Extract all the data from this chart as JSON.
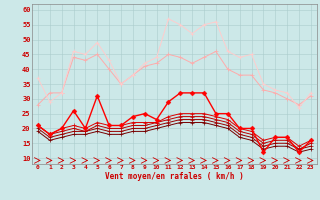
{
  "xlabel": "Vent moyen/en rafales ( km/h )",
  "background_color": "#cce8e8",
  "x": [
    0,
    1,
    2,
    3,
    4,
    5,
    6,
    7,
    8,
    9,
    10,
    11,
    12,
    13,
    14,
    15,
    16,
    17,
    18,
    19,
    20,
    21,
    22,
    23
  ],
  "ylim": [
    8,
    62
  ],
  "yticks": [
    10,
    15,
    20,
    25,
    30,
    35,
    40,
    45,
    50,
    55,
    60
  ],
  "line_smooth1": [
    37,
    29,
    32,
    46,
    45,
    49,
    43,
    35,
    38,
    42,
    44,
    57,
    55,
    52,
    55,
    56,
    46,
    44,
    45,
    35,
    33,
    32,
    27,
    32
  ],
  "line_smooth2": [
    28,
    32,
    32,
    44,
    43,
    45,
    40,
    35,
    38,
    41,
    42,
    45,
    44,
    42,
    44,
    46,
    40,
    38,
    38,
    33,
    32,
    30,
    28,
    31
  ],
  "line_med": [
    21,
    18,
    20,
    26,
    20,
    31,
    21,
    21,
    24,
    25,
    23,
    29,
    32,
    32,
    32,
    25,
    25,
    20,
    20,
    12,
    17,
    17,
    12,
    16
  ],
  "line_avg1": [
    21,
    18,
    20,
    21,
    20,
    22,
    21,
    21,
    22,
    22,
    22,
    24,
    25,
    25,
    25,
    24,
    23,
    20,
    19,
    16,
    17,
    17,
    14,
    16
  ],
  "line_avg2": [
    21,
    18,
    19,
    20,
    19,
    21,
    20,
    20,
    21,
    21,
    22,
    23,
    24,
    24,
    24,
    23,
    22,
    19,
    18,
    15,
    16,
    16,
    13,
    15
  ],
  "line_avg3": [
    20,
    17,
    18,
    19,
    19,
    20,
    19,
    19,
    20,
    20,
    21,
    22,
    23,
    23,
    23,
    22,
    21,
    18,
    17,
    14,
    15,
    15,
    13,
    14
  ],
  "line_avg4": [
    19,
    16,
    17,
    18,
    18,
    19,
    18,
    18,
    19,
    19,
    20,
    21,
    22,
    22,
    22,
    21,
    20,
    17,
    16,
    13,
    14,
    14,
    12,
    13
  ],
  "c_light1": "#ffaaaa",
  "c_light2": "#ffcccc",
  "c_bright": "#ff0000",
  "c_med1": "#dd0000",
  "c_med2": "#bb0000",
  "c_dark1": "#990000",
  "c_dark2": "#770000"
}
